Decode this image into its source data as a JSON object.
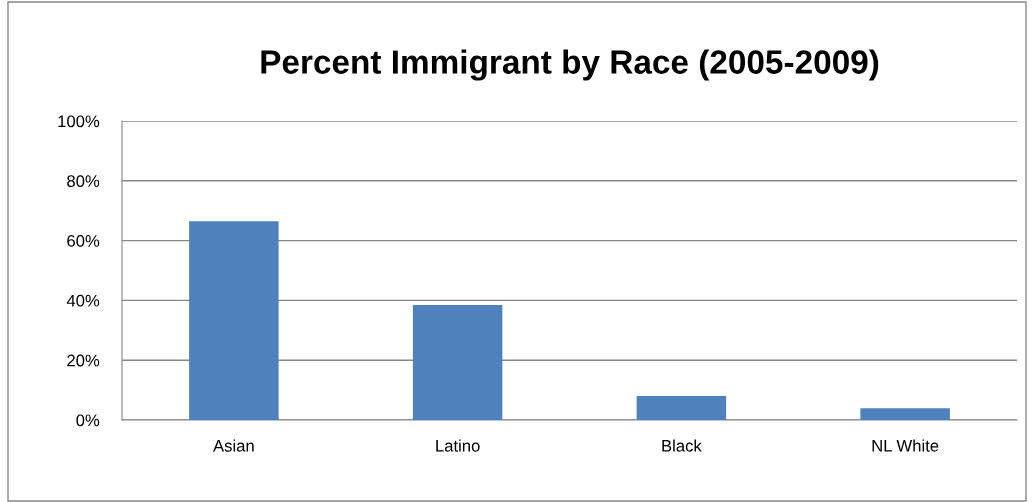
{
  "chart_data": {
    "type": "bar",
    "title": "Percent Immigrant by Race (2005-2009)",
    "categories": [
      "Asian",
      "Latino",
      "Black",
      "NL White"
    ],
    "values": [
      66.5,
      38.5,
      8.0,
      3.9
    ],
    "color": "#4f81bd",
    "ylim": [
      0,
      100
    ],
    "yticks": [
      {
        "value": 0,
        "label": "0%"
      },
      {
        "value": 20,
        "label": "20%"
      },
      {
        "value": 40,
        "label": "40%"
      },
      {
        "value": 60,
        "label": "60%"
      },
      {
        "value": 80,
        "label": "80%"
      },
      {
        "value": 100,
        "label": "100%"
      }
    ],
    "grid": "y",
    "legend": false
  }
}
